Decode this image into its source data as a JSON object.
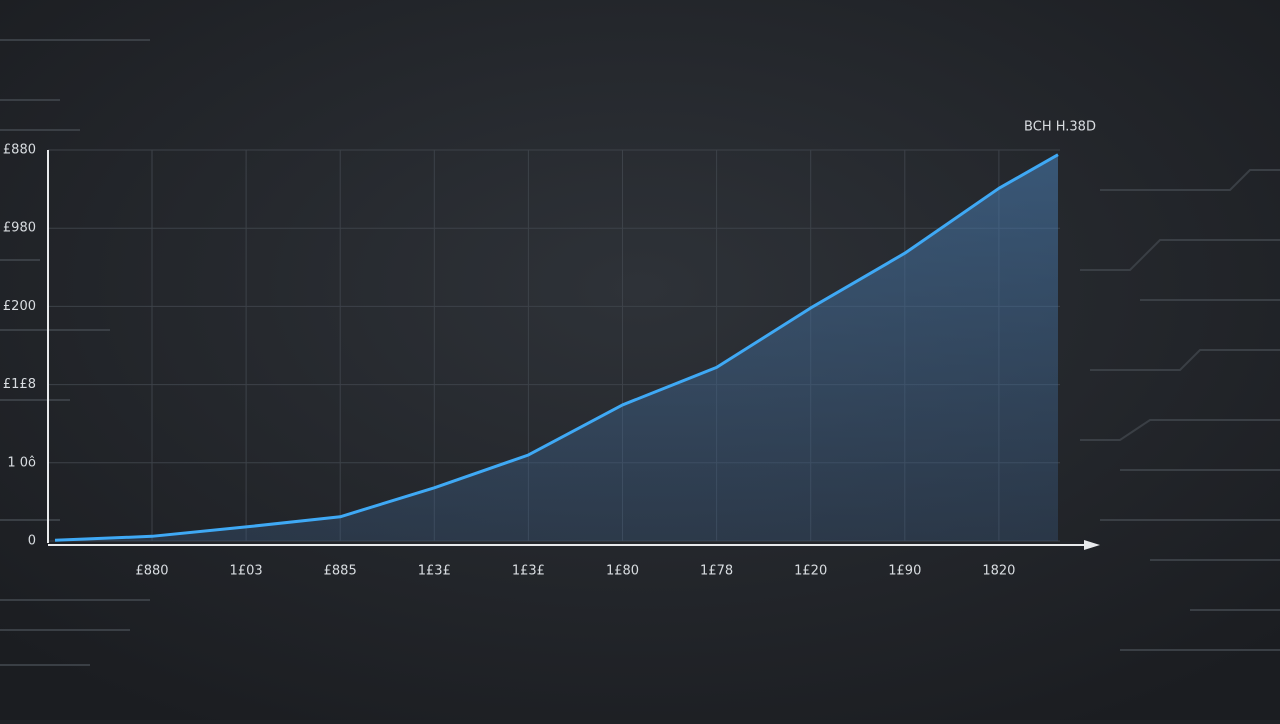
{
  "chart_data": {
    "type": "area",
    "annotation": "BCH H.38D",
    "categories": [
      null,
      "£880",
      "1£03",
      "£885",
      "1£3£",
      "1£3£",
      "1£80",
      "1£78",
      "1£20",
      "1£90",
      "1820",
      null
    ],
    "values": [
      1,
      6,
      18,
      31,
      68,
      110,
      174,
      222,
      298,
      368,
      451,
      494
    ],
    "color": "#3fa9f5",
    "ylim": [
      0,
      500
    ],
    "yticks": [
      0,
      {
        "value": 100,
        "label": "1 0ô"
      },
      {
        "value": 200,
        "label": "£1£8"
      },
      {
        "value": 300,
        "label": "£200"
      },
      {
        "value": 400,
        "label": "£980"
      },
      {
        "value": 500,
        "label": "£880"
      }
    ],
    "grid": true
  }
}
